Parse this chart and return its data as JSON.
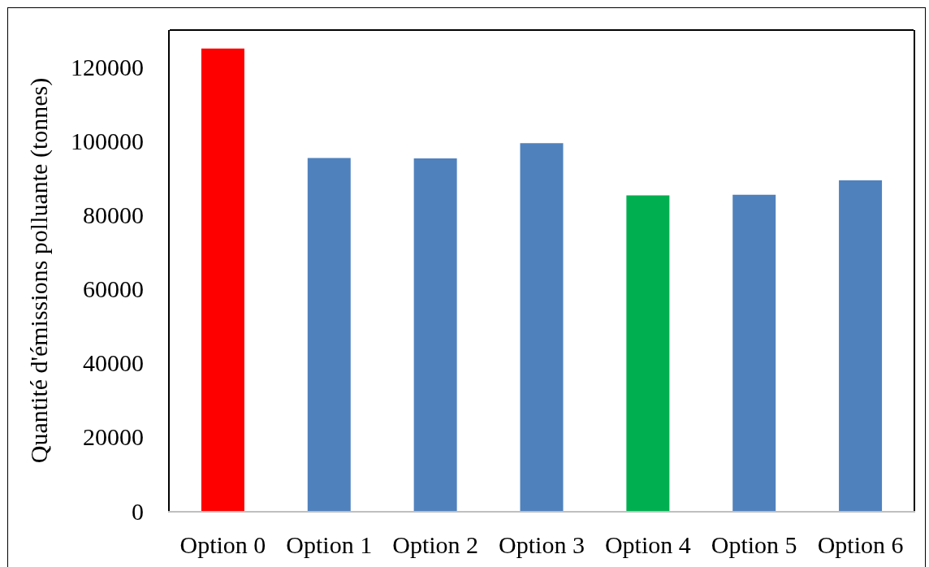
{
  "chart_data": {
    "type": "bar",
    "ylabel": "Quantité d'émissions polluante (tonnes)",
    "categories": [
      "Option 0",
      "Option 1",
      "Option 2",
      "Option 3",
      "Option 4",
      "Option 5",
      "Option 6"
    ],
    "values": [
      125000,
      95400,
      95300,
      99400,
      85300,
      85500,
      89400
    ],
    "colors": [
      "#ff0000",
      "#4f81bd",
      "#4f81bd",
      "#4f81bd",
      "#00b050",
      "#4f81bd",
      "#4f81bd"
    ],
    "ylim": [
      0,
      130000
    ],
    "yticks": [
      0,
      20000,
      40000,
      60000,
      80000,
      100000,
      120000
    ]
  }
}
